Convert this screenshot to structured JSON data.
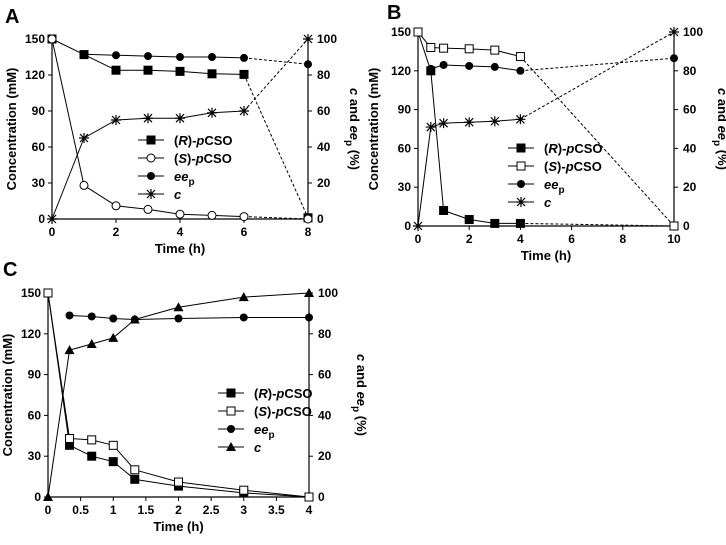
{
  "chart_data": [
    {
      "panel": "A",
      "type": "line",
      "xlabel": "Time (h)",
      "ylabel": "Concentration (mM)",
      "y2label": "c and ee_p (%)",
      "xlim": [
        0,
        8
      ],
      "ylim": [
        0,
        150
      ],
      "y2lim": [
        0,
        100
      ],
      "xticks": [
        "0",
        "2",
        "4",
        "6",
        "8"
      ],
      "yticks": [
        "0",
        "30",
        "60",
        "90",
        "120",
        "150"
      ],
      "y2ticks": [
        "0",
        "20",
        "40",
        "60",
        "80",
        "100"
      ],
      "legend_position": "center-right",
      "series": [
        {
          "name": "(R)-pCSO",
          "axis": "left",
          "marker": "square-filled",
          "x": [
            0,
            1,
            2,
            3,
            4,
            5,
            6,
            8
          ],
          "y": [
            150,
            137,
            124,
            124,
            123,
            121,
            120.5,
            1
          ],
          "dashed_from": 6
        },
        {
          "name": "(S)-pCSO",
          "axis": "left",
          "marker": "circle-open",
          "x": [
            0,
            1,
            2,
            3,
            4,
            5,
            6,
            8
          ],
          "y": [
            150,
            28,
            11,
            8,
            4,
            3,
            2,
            0
          ],
          "dashed_from": 6
        },
        {
          "name": "ee_p",
          "axis": "right",
          "marker": "circle-filled",
          "x": [
            1,
            2,
            3,
            4,
            5,
            6,
            8
          ],
          "y": [
            91.5,
            91,
            90.5,
            90,
            90,
            89.5,
            86
          ],
          "dashed_from": 6
        },
        {
          "name": "c",
          "axis": "right",
          "marker": "star",
          "x": [
            0,
            1,
            2,
            3,
            4,
            5,
            6,
            8
          ],
          "y": [
            0,
            45,
            55,
            56,
            56,
            59,
            60,
            100
          ],
          "dashed_from": 6
        }
      ]
    },
    {
      "panel": "B",
      "type": "line",
      "xlabel": "Time (h)",
      "ylabel": "Concentration (mM)",
      "y2label": "c and ee_p (%)",
      "xlim": [
        0,
        10
      ],
      "ylim": [
        0,
        150
      ],
      "y2lim": [
        0,
        100
      ],
      "xticks": [
        "0",
        "2",
        "4",
        "6",
        "8",
        "10"
      ],
      "yticks": [
        "0",
        "30",
        "60",
        "90",
        "120",
        "150"
      ],
      "y2ticks": [
        "0",
        "20",
        "40",
        "60",
        "80",
        "100"
      ],
      "legend_position": "center-right",
      "series": [
        {
          "name": "(R)-pCSO",
          "axis": "left",
          "marker": "square-filled",
          "x": [
            0,
            0.5,
            1,
            2,
            3,
            4,
            10
          ],
          "y": [
            150,
            120,
            12,
            5,
            2,
            2,
            0
          ],
          "dashed_from": 4
        },
        {
          "name": "(S)-pCSO",
          "axis": "left",
          "marker": "square-open",
          "x": [
            0,
            0.5,
            1,
            2,
            3,
            4,
            10
          ],
          "y": [
            150,
            138,
            137.5,
            137,
            136,
            131,
            0
          ],
          "dashed_from": 4
        },
        {
          "name": "ee_p",
          "axis": "right",
          "marker": "circle-filled",
          "x": [
            0.5,
            1,
            2,
            3,
            4,
            10
          ],
          "y": [
            81,
            83,
            82.5,
            82,
            80,
            86.5
          ],
          "dashed_from": 4
        },
        {
          "name": "c",
          "axis": "right",
          "marker": "star",
          "x": [
            0,
            0.5,
            1,
            2,
            3,
            4,
            10
          ],
          "y": [
            0,
            51,
            53,
            53.5,
            54,
            55,
            100
          ],
          "dashed_from": 4
        }
      ]
    },
    {
      "panel": "C",
      "type": "line",
      "xlabel": "Time (h)",
      "ylabel": "Concentration (mM)",
      "y2label": "c and ee_p (%)",
      "xlim": [
        0,
        4
      ],
      "ylim": [
        0,
        150
      ],
      "y2lim": [
        0,
        100
      ],
      "xticks": [
        "0",
        "0.5",
        "1",
        "1.5",
        "2",
        "2.5",
        "3",
        "3.5",
        "4"
      ],
      "yticks": [
        "0",
        "30",
        "60",
        "90",
        "120",
        "150"
      ],
      "y2ticks": [
        "0",
        "20",
        "40",
        "60",
        "80",
        "100"
      ],
      "legend_position": "center-right",
      "series": [
        {
          "name": "(R)-pCSO",
          "axis": "left",
          "marker": "square-filled",
          "x": [
            0,
            0.33,
            0.67,
            1,
            1.33,
            2,
            3,
            4
          ],
          "y": [
            150,
            38,
            30,
            26,
            13,
            8,
            3,
            0
          ]
        },
        {
          "name": "(S)-pCSO",
          "axis": "left",
          "marker": "square-open",
          "x": [
            0,
            0.33,
            0.67,
            1,
            1.33,
            2,
            3,
            4
          ],
          "y": [
            150,
            43,
            42,
            38,
            20,
            11,
            5,
            0
          ]
        },
        {
          "name": "ee_p",
          "axis": "right",
          "marker": "circle-filled",
          "x": [
            0.33,
            0.67,
            1,
            1.33,
            2,
            3,
            4
          ],
          "y": [
            89,
            88.5,
            87.5,
            87,
            87.5,
            88,
            88
          ]
        },
        {
          "name": "c",
          "axis": "right",
          "marker": "triangle-filled",
          "x": [
            0,
            0.33,
            0.67,
            1,
            1.33,
            2,
            3,
            4
          ],
          "y": [
            0,
            72,
            75,
            78,
            87,
            93,
            98,
            100
          ]
        }
      ]
    }
  ]
}
